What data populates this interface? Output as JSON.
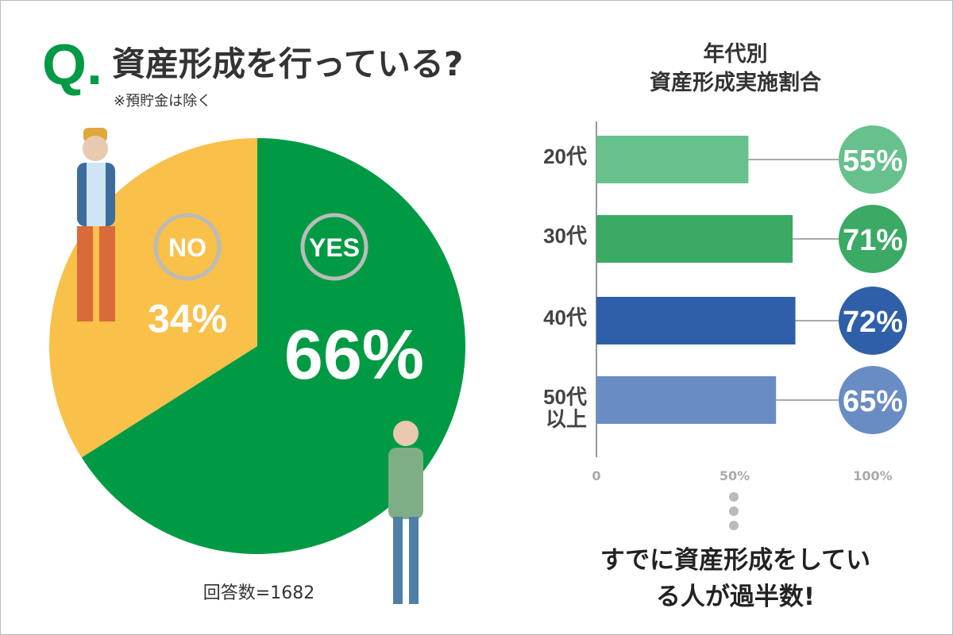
{
  "header": {
    "mark": "Q.",
    "title": "資産形成を行っている?",
    "note": "※預貯金は除く"
  },
  "chart_data": [
    {
      "type": "pie",
      "categories": [
        "YES",
        "NO"
      ],
      "values": [
        66,
        34
      ],
      "value_labels": [
        "66%",
        "34%"
      ],
      "colors": [
        "#009a44",
        "#f9c04a"
      ],
      "footnote": "回答数=1682"
    },
    {
      "type": "bar",
      "title": [
        "年代別",
        "資産形成実施割合"
      ],
      "categories": [
        "20代",
        "30代",
        "40代",
        "50代以上"
      ],
      "values": [
        55,
        71,
        72,
        65
      ],
      "value_labels": [
        "55%",
        "71%",
        "72%",
        "65%"
      ],
      "colors": [
        "#66c18c",
        "#3aaa64",
        "#2f5fa8",
        "#6a8cc4"
      ],
      "xlim": [
        0,
        100
      ],
      "xticks": [
        0,
        {
          "value": 50,
          "label": "50%"
        },
        {
          "value": 100,
          "label": "100%"
        }
      ],
      "conclusion": "すでに資産形成をしている人が過半数!"
    }
  ]
}
